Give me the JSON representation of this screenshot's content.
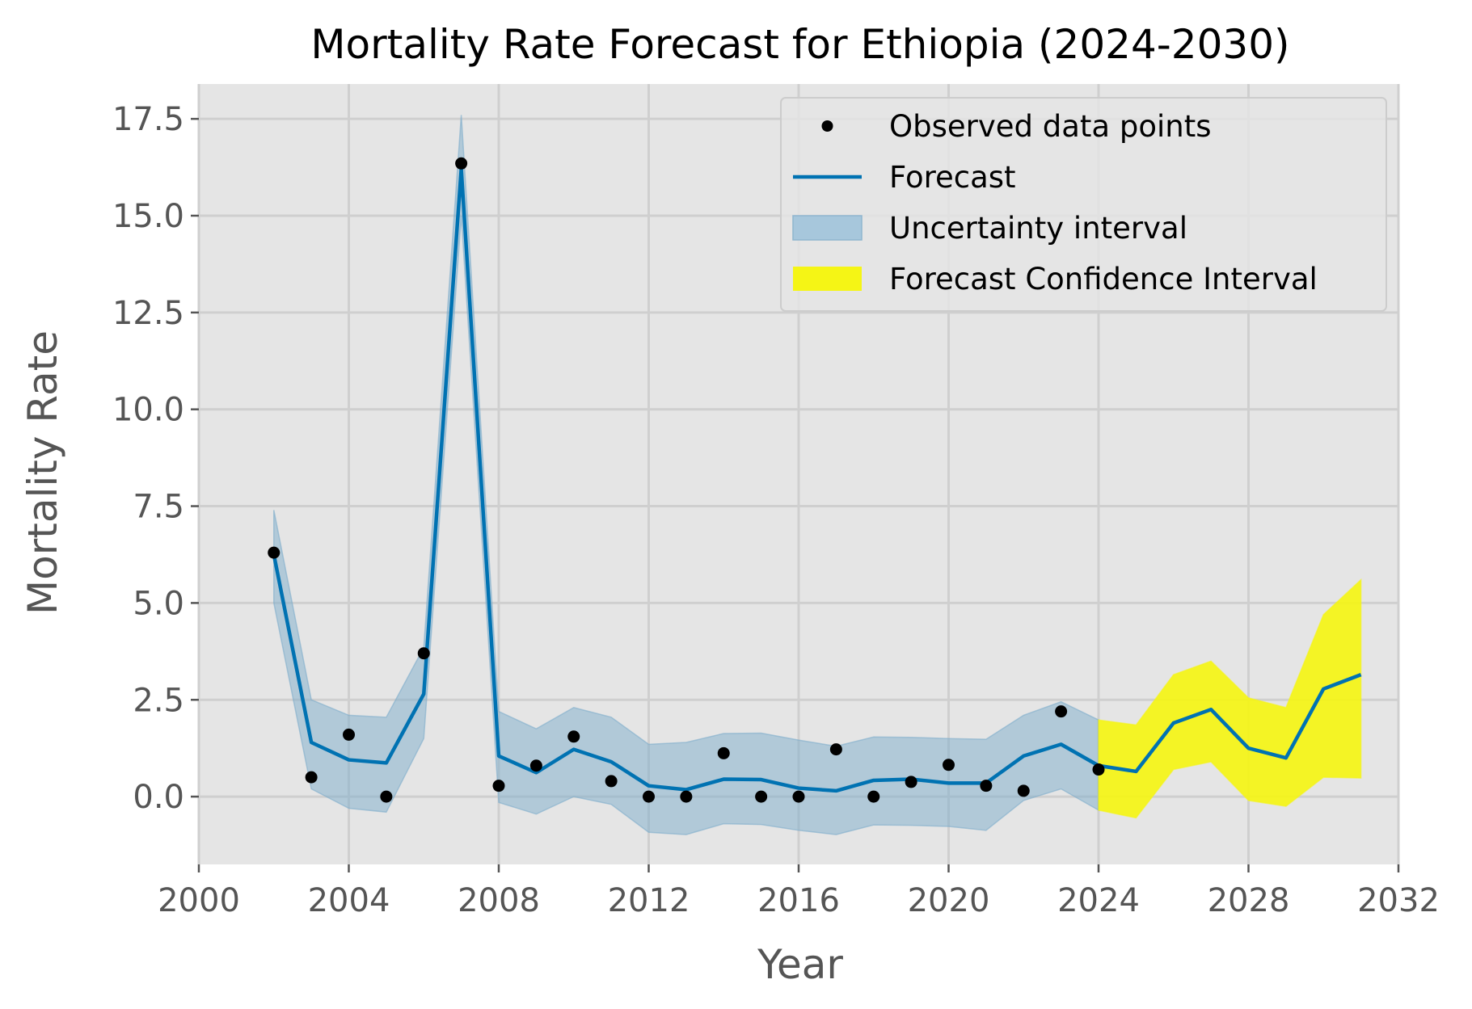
{
  "chart_data": {
    "type": "line",
    "title": "Mortality Rate Forecast for Ethiopia (2024-2030)",
    "xlabel": "Year",
    "ylabel": "Mortality Rate",
    "xlim": [
      2000,
      2032
    ],
    "ylim": [
      -1.75,
      18.4
    ],
    "xticks": [
      2000,
      2004,
      2008,
      2012,
      2016,
      2020,
      2024,
      2028,
      2032
    ],
    "yticks": [
      0.0,
      2.5,
      5.0,
      7.5,
      10.0,
      12.5,
      15.0,
      17.5
    ],
    "xtick_labels": [
      "2000",
      "2004",
      "2008",
      "2012",
      "2016",
      "2020",
      "2024",
      "2028",
      "2032"
    ],
    "ytick_labels": [
      "0.0",
      "2.5",
      "5.0",
      "7.5",
      "10.0",
      "12.5",
      "15.0",
      "17.5"
    ],
    "grid": true,
    "legend_position": "top-right",
    "legend": [
      {
        "label": "Observed data points",
        "kind": "marker"
      },
      {
        "label": "Forecast",
        "kind": "line"
      },
      {
        "label": "Uncertainty interval",
        "kind": "band"
      },
      {
        "label": "Forecast Confidence Interval",
        "kind": "band-forecast"
      }
    ],
    "colors": {
      "background": "#e5e5e5",
      "grid": "#cfcfcf",
      "forecast_line": "#0072b2",
      "uncertainty_fill": "#a7c7dc",
      "confidence_fill": "#f5f515",
      "observed": "#000000"
    },
    "observed": {
      "x": [
        2002,
        2003,
        2004,
        2005,
        2006,
        2007,
        2008,
        2009,
        2010,
        2011,
        2012,
        2013,
        2014,
        2015,
        2016,
        2017,
        2018,
        2019,
        2020,
        2021,
        2022,
        2023,
        2024
      ],
      "y": [
        6.3,
        0.5,
        1.6,
        0.0,
        3.7,
        16.35,
        0.28,
        0.8,
        1.55,
        0.4,
        0.0,
        0.0,
        1.12,
        0.0,
        0.0,
        1.22,
        0.0,
        0.38,
        0.82,
        0.28,
        0.15,
        2.2,
        0.7
      ]
    },
    "forecast": {
      "x": [
        2002,
        2003,
        2004,
        2005,
        2006,
        2007,
        2008,
        2009,
        2010,
        2011,
        2012,
        2013,
        2014,
        2015,
        2016,
        2017,
        2018,
        2019,
        2020,
        2021,
        2022,
        2023,
        2024,
        2025,
        2026,
        2027,
        2028,
        2029,
        2030,
        2031
      ],
      "y": [
        6.25,
        1.4,
        0.95,
        0.87,
        2.65,
        16.2,
        1.05,
        0.62,
        1.22,
        0.9,
        0.28,
        0.18,
        0.45,
        0.44,
        0.22,
        0.15,
        0.42,
        0.45,
        0.35,
        0.35,
        1.05,
        1.35,
        0.8,
        0.65,
        1.9,
        2.25,
        1.25,
        1.0,
        2.78,
        3.15
      ]
    },
    "uncertainty_interval": {
      "x": [
        2002,
        2003,
        2004,
        2005,
        2006,
        2007,
        2008,
        2009,
        2010,
        2011,
        2012,
        2013,
        2014,
        2015,
        2016,
        2017,
        2018,
        2019,
        2020,
        2021,
        2022,
        2023,
        2024
      ],
      "lower": [
        5.0,
        0.2,
        -0.3,
        -0.4,
        1.5,
        15.0,
        -0.15,
        -0.45,
        0.0,
        -0.2,
        -0.92,
        -0.98,
        -0.7,
        -0.72,
        -0.87,
        -0.98,
        -0.73,
        -0.74,
        -0.77,
        -0.87,
        -0.1,
        0.2,
        -0.35
      ],
      "upper": [
        7.4,
        2.5,
        2.1,
        2.05,
        3.85,
        17.6,
        2.2,
        1.75,
        2.3,
        2.05,
        1.35,
        1.4,
        1.63,
        1.64,
        1.46,
        1.3,
        1.54,
        1.53,
        1.5,
        1.48,
        2.1,
        2.45,
        1.98
      ]
    },
    "forecast_confidence_interval": {
      "x": [
        2024,
        2025,
        2026,
        2027,
        2028,
        2029,
        2030,
        2031
      ],
      "lower": [
        -0.35,
        -0.55,
        0.7,
        0.9,
        -0.1,
        -0.25,
        0.5,
        0.48
      ],
      "upper": [
        1.98,
        1.85,
        3.15,
        3.5,
        2.55,
        2.3,
        4.7,
        5.6
      ]
    }
  }
}
